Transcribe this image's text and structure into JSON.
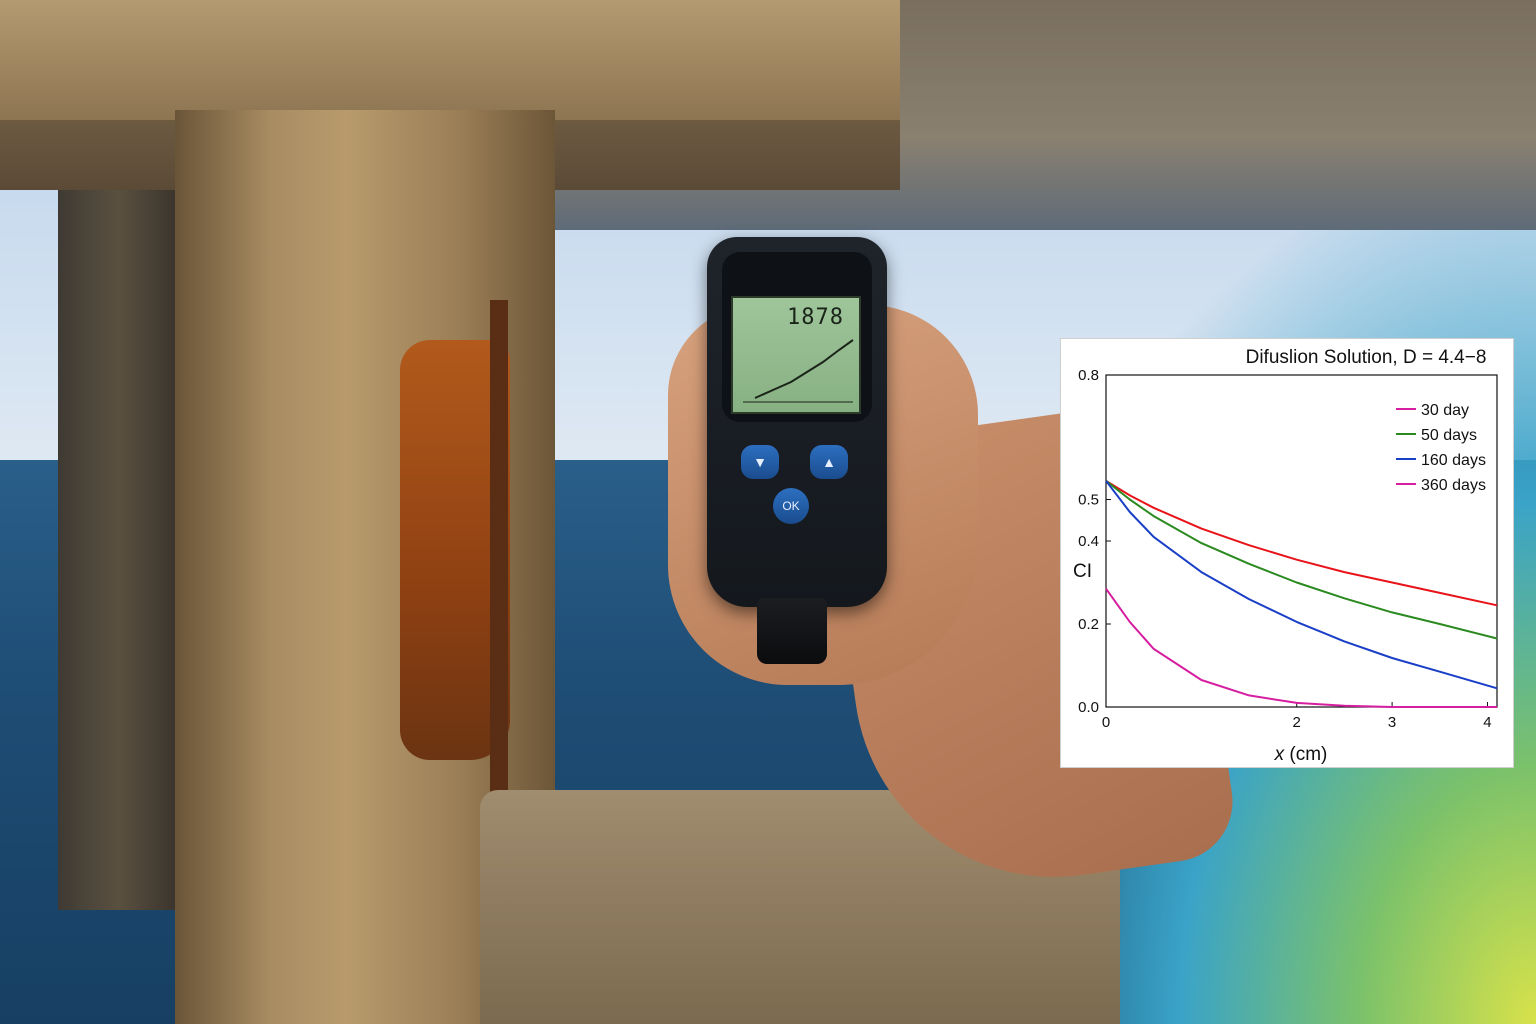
{
  "device": {
    "reading": "1878"
  },
  "meter_buttons": {
    "down": "▼",
    "up": "▲",
    "ok": "OK"
  },
  "chart_data": {
    "type": "line",
    "title": "Difuslion Solution, D = 4.4−8",
    "xlabel_italic": "x",
    "xlabel_unit": " (cm)",
    "ylabel": "CI",
    "xlim": [
      0,
      4.1
    ],
    "ylim": [
      0,
      0.8
    ],
    "xticks": [
      0,
      2,
      3,
      4
    ],
    "yticks": [
      0.0,
      0.2,
      0.4,
      0.5,
      0.8
    ],
    "ytick_labels": [
      "0.0",
      "0.2",
      "0.4",
      "0.5",
      "0.8"
    ],
    "legend": [
      {
        "name": "30 day",
        "color": "#d61fa0"
      },
      {
        "name": "50 days",
        "color": "#2b8a1f"
      },
      {
        "name": "160 days",
        "color": "#1a3fc7"
      },
      {
        "name": "360 days",
        "color": "#d61fa0"
      }
    ],
    "legend_position": "top-right",
    "series": [
      {
        "color": "#e8141a",
        "x": [
          0,
          0.25,
          0.5,
          1.0,
          1.5,
          2.0,
          2.5,
          3.0,
          3.5,
          4.1
        ],
        "y": [
          0.545,
          0.51,
          0.48,
          0.43,
          0.39,
          0.355,
          0.325,
          0.3,
          0.275,
          0.245
        ]
      },
      {
        "color": "#2b8a1f",
        "x": [
          0,
          0.25,
          0.5,
          1.0,
          1.5,
          2.0,
          2.5,
          3.0,
          3.5,
          4.1
        ],
        "y": [
          0.545,
          0.5,
          0.46,
          0.395,
          0.345,
          0.3,
          0.262,
          0.228,
          0.2,
          0.165
        ]
      },
      {
        "color": "#1a3fc7",
        "x": [
          0,
          0.25,
          0.5,
          1.0,
          1.5,
          2.0,
          2.5,
          3.0,
          3.5,
          4.1
        ],
        "y": [
          0.545,
          0.47,
          0.41,
          0.325,
          0.26,
          0.205,
          0.158,
          0.118,
          0.085,
          0.045
        ]
      },
      {
        "color": "#d61fa0",
        "x": [
          0,
          0.25,
          0.5,
          1.0,
          1.5,
          2.0,
          2.5,
          3.0,
          3.5,
          4.1
        ],
        "y": [
          0.285,
          0.205,
          0.14,
          0.065,
          0.028,
          0.01,
          0.003,
          0.0,
          0.0,
          0.0
        ]
      }
    ]
  }
}
